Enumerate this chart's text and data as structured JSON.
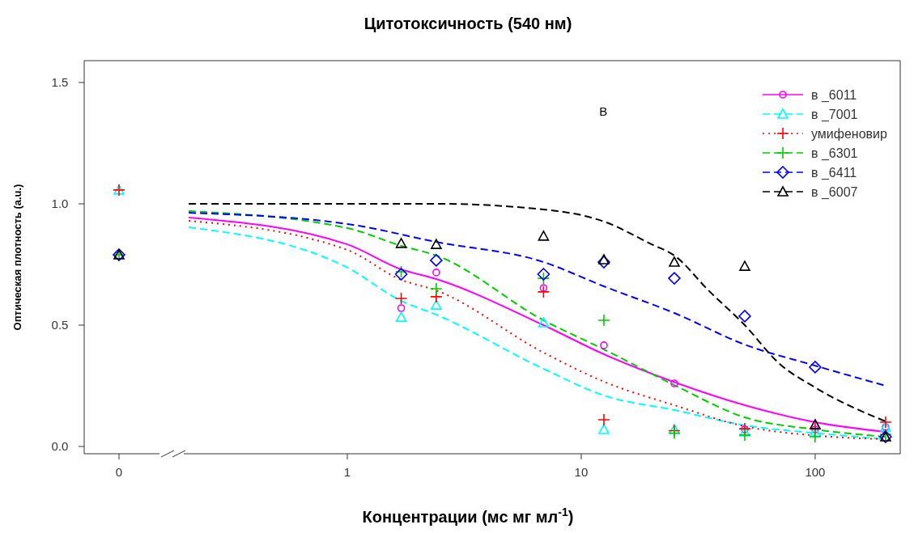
{
  "chart_data": [
    {
      "type": "scatter",
      "ylabel": "Оптическая плотность (a.u.)",
      "categories": [
        "0"
      ],
      "ylim": [
        -0.03,
        1.59
      ],
      "yticks": [
        {
          "value": 0,
          "label": "0.0"
        },
        {
          "value": 0.5,
          "label": "0.5"
        },
        {
          "value": 1,
          "label": "1.0"
        },
        {
          "value": 1.5,
          "label": "1.5"
        }
      ],
      "series": [
        {
          "color": "#00ffff",
          "marker": "triangle",
          "values": [
            1.057
          ]
        },
        {
          "color": "#ff0000",
          "marker": "cross",
          "values": [
            1.057
          ]
        },
        {
          "color": "#00cc00",
          "marker": "cross",
          "values": [
            0.79
          ]
        },
        {
          "color": "#0000ff",
          "marker": "diamond",
          "values": [
            0.79
          ]
        },
        {
          "color": "#000000",
          "marker": "triangle",
          "values": [
            0.79
          ]
        }
      ]
    },
    {
      "type": "line",
      "title": "Цитотоксичность (540 нм)",
      "xlabel": "Концентрации  (мс мг мл$^{-1}$)",
      "log": "x",
      "xlim": [
        0.2,
        231
      ],
      "xticks": [
        1,
        10,
        100
      ],
      "ylim": [
        -0.03,
        1.59
      ],
      "tick_labels": "x",
      "legend": "top right",
      "annotations": [
        "В"
      ],
      "series": [
        {
          "name": "в _6011",
          "color": "#ff00ff",
          "line_style": "solid",
          "x": [
            0.21,
            1,
            1.7,
            2.4,
            6.9,
            12.5,
            25,
            50,
            100,
            200
          ],
          "values": [
            0.943,
            0.833,
            0.73,
            0.69,
            0.5,
            0.38,
            0.265,
            0.17,
            0.1,
            0.06
          ]
        },
        {
          "name": "в _7001",
          "color": "#00ffff",
          "line_style": "dashed",
          "x": [
            0.21,
            1,
            1.7,
            2.4,
            6.9,
            12.5,
            25,
            50,
            100,
            200
          ],
          "values": [
            0.903,
            0.737,
            0.6,
            0.543,
            0.32,
            0.21,
            0.15,
            0.087,
            0.055,
            0.03
          ]
        },
        {
          "name": "умифеновир",
          "color": "#ff0000",
          "line_style": "dotted",
          "x": [
            0.21,
            1,
            1.7,
            2.4,
            6.9,
            12.5,
            25,
            50,
            100,
            200
          ],
          "values": [
            0.93,
            0.81,
            0.687,
            0.643,
            0.387,
            0.267,
            0.17,
            0.083,
            0.045,
            0.03
          ]
        },
        {
          "name": "в _6301",
          "color": "#00cc00",
          "line_style": "dashed",
          "x": [
            0.21,
            1,
            1.7,
            2.4,
            6.9,
            12.5,
            25,
            50,
            100,
            200
          ],
          "values": [
            0.97,
            0.9,
            0.827,
            0.787,
            0.52,
            0.4,
            0.253,
            0.12,
            0.07,
            0.04
          ]
        },
        {
          "name": "в _6411",
          "color": "#0000ff",
          "line_style": "dashed",
          "x": [
            0.21,
            1,
            2.4,
            6.9,
            12.5,
            25,
            50,
            100,
            200
          ],
          "values": [
            0.963,
            0.917,
            0.843,
            0.76,
            0.66,
            0.55,
            0.42,
            0.333,
            0.25
          ]
        },
        {
          "name": "в _6007",
          "color": "#000000",
          "line_style": "dashed",
          "x": [
            0.21,
            1,
            2.4,
            7.9,
            12.5,
            20,
            25,
            35,
            50,
            70,
            100,
            200
          ],
          "values": [
            1.0,
            1.0,
            1.0,
            0.97,
            0.927,
            0.833,
            0.787,
            0.643,
            0.5,
            0.343,
            0.243,
            0.103
          ]
        },
        {
          "type": "scatter",
          "color": "#ff00ff",
          "marker": "circle",
          "x": [
            1.7,
            2.4,
            6.9,
            12.5,
            25,
            50,
            100,
            200
          ],
          "values": [
            0.57,
            0.717,
            0.653,
            0.417,
            0.26,
            0.07,
            0.07,
            0.08
          ]
        },
        {
          "type": "scatter",
          "color": "#00ffff",
          "marker": "triangle",
          "x": [
            1.7,
            2.4,
            6.9,
            12.5,
            25,
            50,
            100,
            200
          ],
          "values": [
            0.533,
            0.583,
            0.51,
            0.07,
            0.07,
            0.06,
            0.06,
            0.08
          ]
        },
        {
          "type": "scatter",
          "color": "#ff0000",
          "marker": "cross",
          "x": [
            1.7,
            2.4,
            6.9,
            12.5,
            25,
            50,
            100,
            200
          ],
          "values": [
            0.61,
            0.617,
            0.637,
            0.11,
            0.065,
            0.073,
            0.073,
            0.1
          ]
        },
        {
          "type": "scatter",
          "color": "#00cc00",
          "marker": "cross",
          "x": [
            1.7,
            2.4,
            6.9,
            12.5,
            25,
            50,
            100,
            200
          ],
          "values": [
            0.72,
            0.65,
            0.693,
            0.52,
            0.055,
            0.047,
            0.04,
            0.05
          ]
        },
        {
          "type": "scatter",
          "color": "#0000ff",
          "marker": "diamond",
          "x": [
            1.7,
            2.4,
            6.9,
            12.5,
            25,
            50,
            100,
            200
          ],
          "values": [
            0.71,
            0.767,
            0.71,
            0.76,
            0.693,
            0.537,
            0.327,
            0.04
          ]
        },
        {
          "type": "scatter",
          "color": "#000000",
          "marker": "triangle",
          "x": [
            1.7,
            2.4,
            6.9,
            12.5,
            25,
            50,
            100,
            200
          ],
          "values": [
            0.837,
            0.833,
            0.867,
            0.77,
            0.76,
            0.743,
            0.09,
            0.04
          ]
        }
      ]
    }
  ]
}
